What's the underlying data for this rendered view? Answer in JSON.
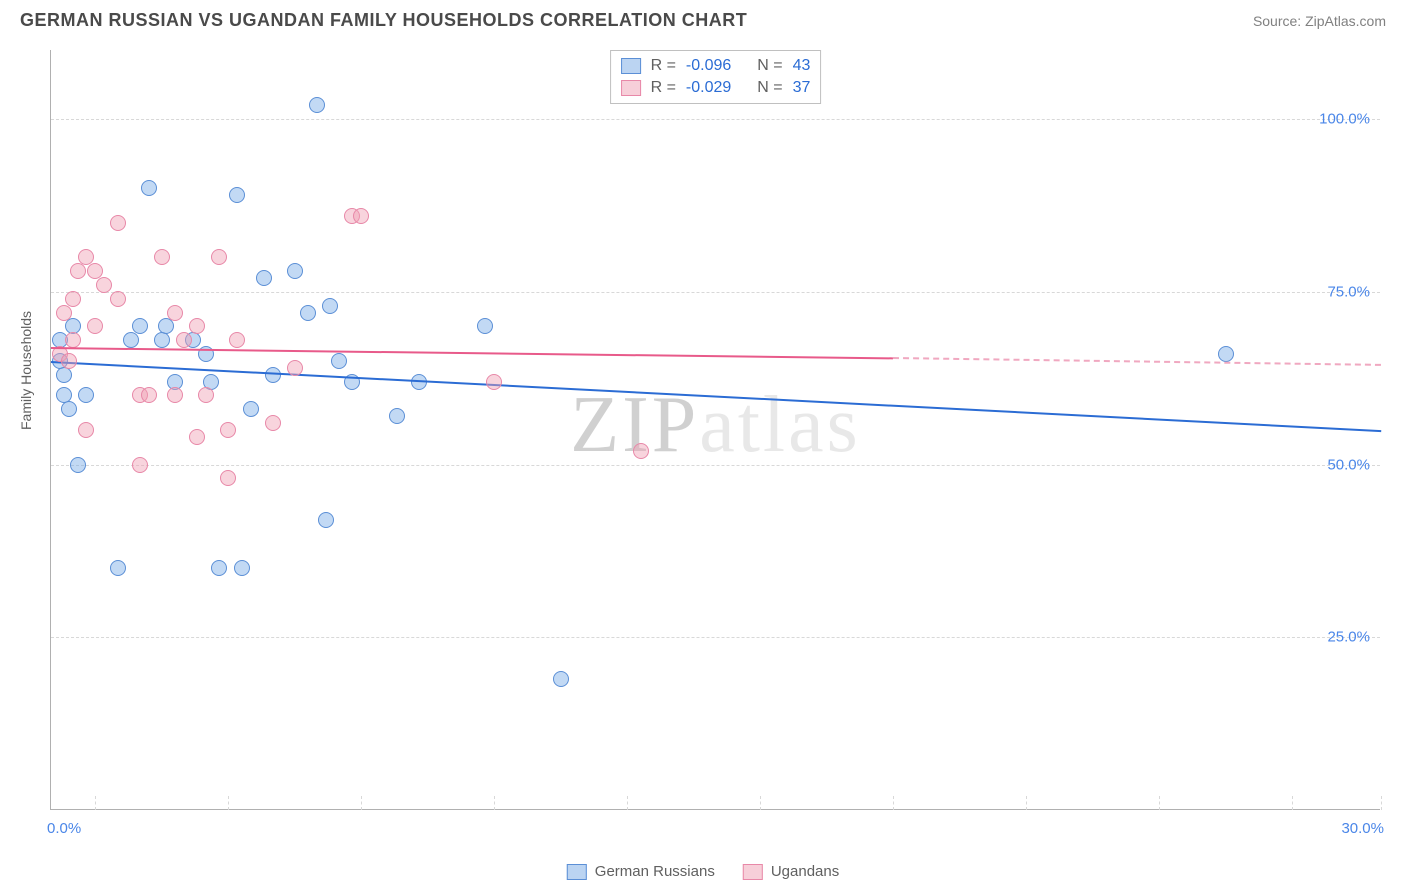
{
  "header": {
    "title": "GERMAN RUSSIAN VS UGANDAN FAMILY HOUSEHOLDS CORRELATION CHART",
    "source": "Source: ZipAtlas.com"
  },
  "chart": {
    "type": "scatter",
    "ylabel": "Family Households",
    "watermark": "ZIPatlas",
    "background_color": "#ffffff",
    "grid_color": "#d8d8d8",
    "axis_color": "#b0b0b0",
    "tick_label_color": "#4a86e8",
    "xlim": [
      0,
      30
    ],
    "ylim": [
      0,
      110
    ],
    "yticks": [
      25,
      50,
      75,
      100
    ],
    "ytick_labels": [
      "25.0%",
      "50.0%",
      "75.0%",
      "100.0%"
    ],
    "xticks_positions": [
      1,
      4,
      7,
      10,
      13,
      16,
      19,
      22,
      25,
      28,
      30
    ],
    "xtick_labels": {
      "start": "0.0%",
      "end": "30.0%"
    },
    "point_radius": 8,
    "series": [
      {
        "name": "German Russians",
        "color_fill": "rgba(120,170,230,0.45)",
        "color_stroke": "#5b8fd6",
        "points": [
          [
            0.2,
            65
          ],
          [
            0.2,
            68
          ],
          [
            0.3,
            60
          ],
          [
            0.3,
            63
          ],
          [
            0.4,
            58
          ],
          [
            0.5,
            70
          ],
          [
            0.6,
            50
          ],
          [
            0.8,
            60
          ],
          [
            1.5,
            35
          ],
          [
            1.8,
            68
          ],
          [
            2.0,
            70
          ],
          [
            2.2,
            90
          ],
          [
            2.5,
            68
          ],
          [
            2.6,
            70
          ],
          [
            2.8,
            62
          ],
          [
            3.2,
            68
          ],
          [
            3.5,
            66
          ],
          [
            3.6,
            62
          ],
          [
            3.8,
            35
          ],
          [
            4.2,
            89
          ],
          [
            4.3,
            35
          ],
          [
            4.5,
            58
          ],
          [
            4.8,
            77
          ],
          [
            5.0,
            63
          ],
          [
            5.5,
            78
          ],
          [
            5.8,
            72
          ],
          [
            6.0,
            102
          ],
          [
            6.2,
            42
          ],
          [
            6.3,
            73
          ],
          [
            6.5,
            65
          ],
          [
            6.8,
            62
          ],
          [
            7.8,
            57
          ],
          [
            8.3,
            62
          ],
          [
            9.8,
            70
          ],
          [
            11.5,
            19
          ],
          [
            26.5,
            66
          ]
        ],
        "trend": {
          "x1": 0,
          "y1": 65,
          "x2": 30,
          "y2": 55,
          "color": "#2b6cd4",
          "width": 2
        }
      },
      {
        "name": "Ugandans",
        "color_fill": "rgba(240,160,180,0.45)",
        "color_stroke": "#e888a8",
        "points": [
          [
            0.2,
            66
          ],
          [
            0.3,
            72
          ],
          [
            0.4,
            65
          ],
          [
            0.5,
            74
          ],
          [
            0.5,
            68
          ],
          [
            0.6,
            78
          ],
          [
            0.8,
            55
          ],
          [
            0.8,
            80
          ],
          [
            1.0,
            70
          ],
          [
            1.0,
            78
          ],
          [
            1.2,
            76
          ],
          [
            1.5,
            74
          ],
          [
            1.5,
            85
          ],
          [
            2.0,
            60
          ],
          [
            2.0,
            50
          ],
          [
            2.2,
            60
          ],
          [
            2.5,
            80
          ],
          [
            2.8,
            72
          ],
          [
            2.8,
            60
          ],
          [
            3.0,
            68
          ],
          [
            3.3,
            70
          ],
          [
            3.3,
            54
          ],
          [
            3.5,
            60
          ],
          [
            3.8,
            80
          ],
          [
            4.0,
            55
          ],
          [
            4.0,
            48
          ],
          [
            4.2,
            68
          ],
          [
            5.0,
            56
          ],
          [
            5.5,
            64
          ],
          [
            6.8,
            86
          ],
          [
            7.0,
            86
          ],
          [
            10.0,
            62
          ],
          [
            13.3,
            52
          ]
        ],
        "trend": {
          "x1": 0,
          "y1": 67,
          "x2": 19,
          "y2": 65.5,
          "color": "#e85a8a",
          "width": 2,
          "dashed_ext": {
            "x1": 19,
            "y1": 65.5,
            "x2": 30,
            "y2": 64.5
          }
        }
      }
    ],
    "stats_box": {
      "rows": [
        {
          "swatch": "blue",
          "r_label": "R =",
          "r": "-0.096",
          "n_label": "N =",
          "n": "43"
        },
        {
          "swatch": "pink",
          "r_label": "R =",
          "r": "-0.029",
          "n_label": "N =",
          "n": "37"
        }
      ]
    },
    "legend": [
      {
        "swatch": "blue",
        "label": "German Russians"
      },
      {
        "swatch": "pink",
        "label": "Ugandans"
      }
    ]
  }
}
